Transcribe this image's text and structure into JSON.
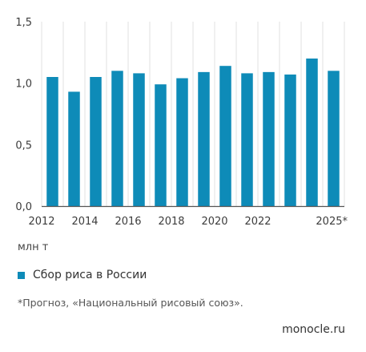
{
  "chart_data": {
    "type": "bar",
    "categories": [
      "2012",
      "2013",
      "2014",
      "2015",
      "2016",
      "2017",
      "2018",
      "2019",
      "2020",
      "2021",
      "2022",
      "2023",
      "2024",
      "2025*"
    ],
    "x_tick_labels": [
      "2012",
      "",
      "2014",
      "",
      "2016",
      "",
      "2018",
      "",
      "2020",
      "",
      "2022",
      "",
      "",
      "2025*"
    ],
    "series": [
      {
        "name": "Сбор риса в России",
        "values": [
          1.05,
          0.93,
          1.05,
          1.1,
          1.08,
          0.99,
          1.04,
          1.09,
          1.14,
          1.08,
          1.09,
          1.07,
          1.2,
          1.1
        ]
      }
    ],
    "y_ticks": [
      0,
      0.5,
      1.0,
      1.5
    ],
    "y_tick_labels": [
      "0,0",
      "0,5",
      "1,0",
      "1,5"
    ],
    "ylim": [
      0,
      1.5
    ],
    "grid": "vertical between categories",
    "legend_position": "bottom-left"
  },
  "unit_label": "млн т",
  "legend_label": "Сбор риса в России",
  "note": "*Прогноз, «Национальный рисовый союз».",
  "source": "monocle.ru",
  "colors": {
    "bar": "#0e8bb8",
    "grid": "#e2e2e2",
    "axis": "#555555",
    "text": "#3c3c3c"
  }
}
